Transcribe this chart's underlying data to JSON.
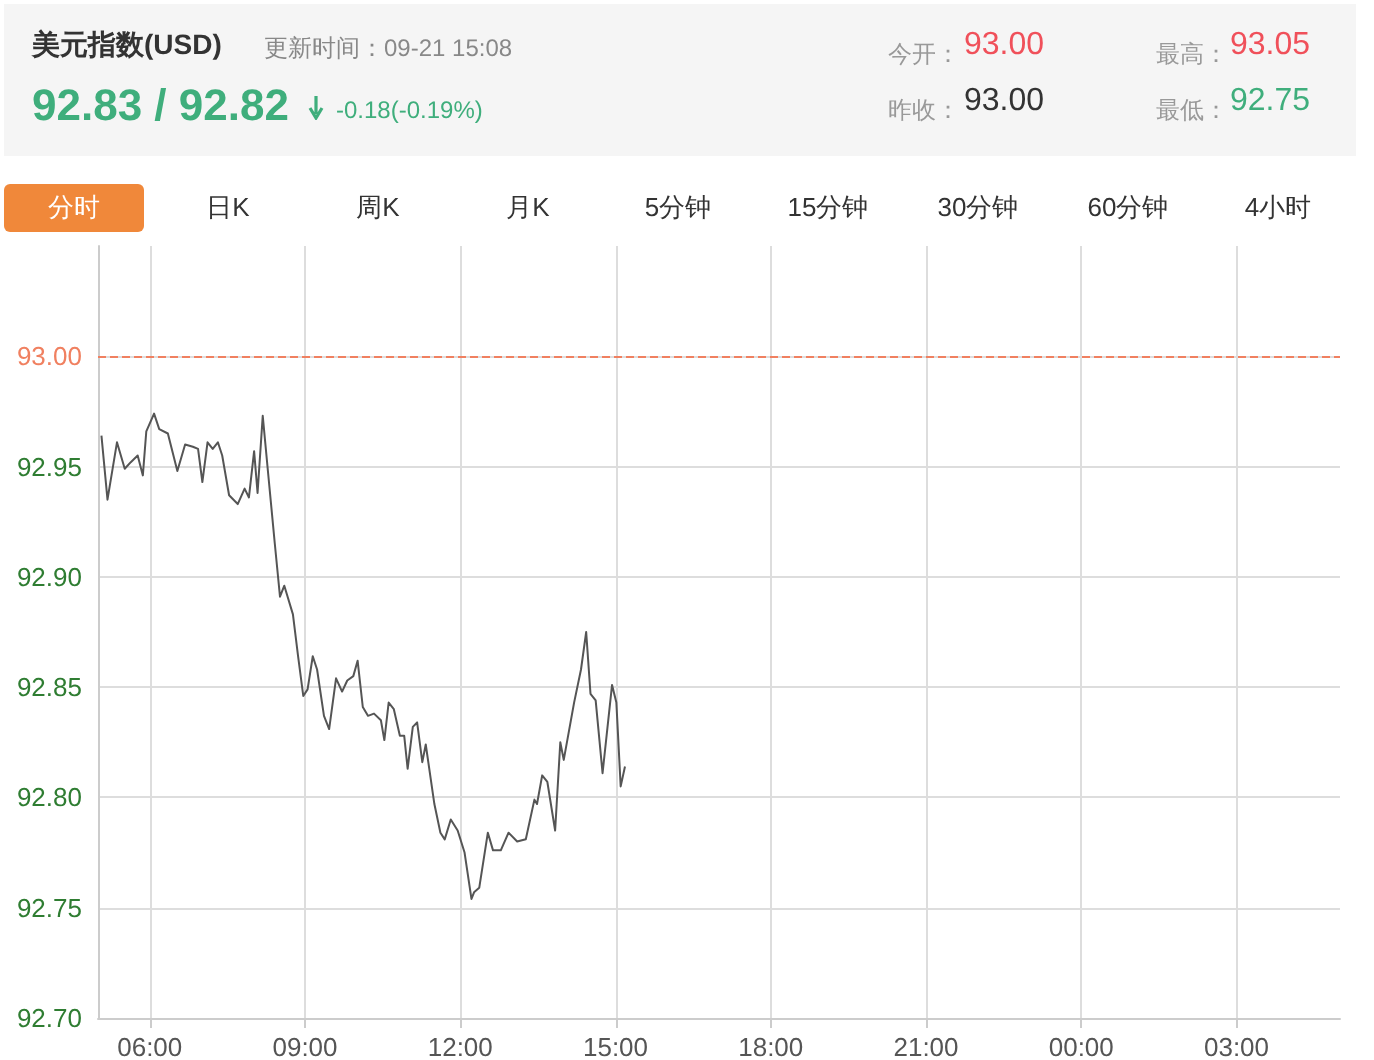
{
  "chart_data": {
    "type": "line",
    "title": "美元指数(USD)",
    "subtitle": "更新时间：09-21 15:08",
    "annotations": [
      "92.83 / 92.82",
      "-0.18(-0.19%)",
      "今开：",
      "93.00",
      "昨收：",
      "93.00",
      "最高：",
      "93.05",
      "最低：",
      "92.75",
      "分时",
      "日K",
      "周K",
      "月K",
      "5分钟",
      "15分钟",
      "30分钟",
      "60分钟",
      "4小时"
    ],
    "x": [
      "--09-21T05:04",
      "--09-21T05:11",
      "--09-21T05:22",
      "--09-21T05:31",
      "--09-21T05:38",
      "--09-21T05:46",
      "--09-21T05:52",
      "--09-21T05:56",
      "--09-21T06:05",
      "--09-21T06:11",
      "--09-21T06:21",
      "--09-21T06:32",
      "--09-21T06:41",
      "--09-21T06:50",
      "--09-21T06:56",
      "--09-21T07:01",
      "--09-21T07:07",
      "--09-21T07:13",
      "--09-21T07:19",
      "--09-21T07:24",
      "--09-21T07:32",
      "--09-21T07:42",
      "--09-21T07:50",
      "--09-21T07:55",
      "--09-21T08:01",
      "--09-21T08:05",
      "--09-21T08:11",
      "--09-21T08:17",
      "--09-21T08:25",
      "--09-21T08:31",
      "--09-21T08:36",
      "--09-21T08:46",
      "--09-21T08:52",
      "--09-21T08:58",
      "--09-21T09:03",
      "--09-21T09:09",
      "--09-21T09:14",
      "--09-21T09:22",
      "--09-21T09:28",
      "--09-21T09:36",
      "--09-21T09:43",
      "--09-21T09:49",
      "--09-21T09:56",
      "--09-21T10:01",
      "--09-21T10:07",
      "--09-21T10:13",
      "--09-21T10:20",
      "--09-21T10:28",
      "--09-21T10:32",
      "--09-21T10:37",
      "--09-21T10:43",
      "--09-21T10:50",
      "--09-21T10:55",
      "--09-21T10:59",
      "--09-21T11:05",
      "--09-21T11:10",
      "--09-21T11:16",
      "--09-21T11:20",
      "--09-21T11:30",
      "--09-21T11:37",
      "--09-21T11:42",
      "--09-21T11:49",
      "--09-21T11:57",
      "--09-21T12:05",
      "--09-21T12:13",
      "--09-21T12:16",
      "--09-21T12:22",
      "--09-21T12:32",
      "--09-21T12:38",
      "--09-21T12:47",
      "--09-21T12:56",
      "--09-21T13:06",
      "--09-21T13:16",
      "--09-21T13:26",
      "--09-21T13:29",
      "--09-21T13:35",
      "--09-21T13:41",
      "--09-21T13:50",
      "--09-21T13:56",
      "--09-21T14:00",
      "--09-21T14:12",
      "--09-21T14:20",
      "--09-21T14:26",
      "--09-21T14:31",
      "--09-21T14:37",
      "--09-21T14:45",
      "--09-21T14:56",
      "--09-21T15:01",
      "--09-21T15:06",
      "--09-21T15:11"
    ],
    "series": [
      {
        "color": "#555555",
        "values": [
          92.964,
          92.935,
          92.961,
          92.949,
          92.952,
          92.955,
          92.946,
          92.966,
          92.974,
          92.967,
          92.965,
          92.948,
          92.96,
          92.959,
          92.958,
          92.943,
          92.961,
          92.958,
          92.961,
          92.955,
          92.937,
          92.933,
          92.94,
          92.936,
          92.957,
          92.938,
          92.973,
          92.948,
          92.915,
          92.891,
          92.896,
          92.883,
          92.864,
          92.846,
          92.849,
          92.864,
          92.858,
          92.837,
          92.831,
          92.854,
          92.848,
          92.853,
          92.855,
          92.862,
          92.841,
          92.837,
          92.838,
          92.835,
          92.826,
          92.843,
          92.84,
          92.828,
          92.828,
          92.813,
          92.832,
          92.834,
          92.816,
          92.824,
          92.797,
          92.784,
          92.781,
          92.79,
          92.785,
          92.775,
          92.754,
          92.757,
          92.759,
          92.784,
          92.776,
          92.776,
          92.784,
          92.78,
          92.781,
          92.799,
          92.797,
          92.81,
          92.807,
          92.785,
          92.825,
          92.817,
          92.843,
          92.858,
          92.875,
          92.847,
          92.844,
          92.811,
          92.851,
          92.843,
          92.805,
          92.814
        ]
      }
    ],
    "xlim": [
      "--09-21T05:00",
      "--09-22T05:00"
    ],
    "xticks": [
      {
        "value": "--09-21T06:00",
        "label": "06:00"
      },
      {
        "value": "--09-21T09:00",
        "label": "09:00"
      },
      {
        "value": "--09-21T12:00",
        "label": "12:00"
      },
      {
        "value": "--09-21T15:00",
        "label": "15:00"
      },
      {
        "value": "--09-21T18:00",
        "label": "18:00"
      },
      {
        "value": "--09-21T21:00",
        "label": "21:00"
      },
      {
        "value": "--09-22T00:00",
        "label": "00:00"
      },
      {
        "value": "--09-22T03:00",
        "label": "03:00"
      }
    ],
    "ylim": [
      92.7,
      93.05
    ],
    "yticks": [
      {
        "value": 92.7,
        "label": "92.70"
      },
      {
        "value": 92.75,
        "label": "92.75"
      },
      {
        "value": 92.8,
        "label": "92.80"
      },
      {
        "value": 92.85,
        "label": "92.85"
      },
      {
        "value": 92.9,
        "label": "92.90"
      },
      {
        "value": 92.95,
        "label": "92.95"
      },
      {
        "value": 93.0,
        "label": "93.00"
      }
    ],
    "ref_lines": [
      {
        "axis": "y",
        "value": 93.0,
        "color": "#f08060",
        "line_style": "dashed"
      }
    ],
    "grid": true,
    "marker": "none",
    "line_style": "solid"
  }
}
